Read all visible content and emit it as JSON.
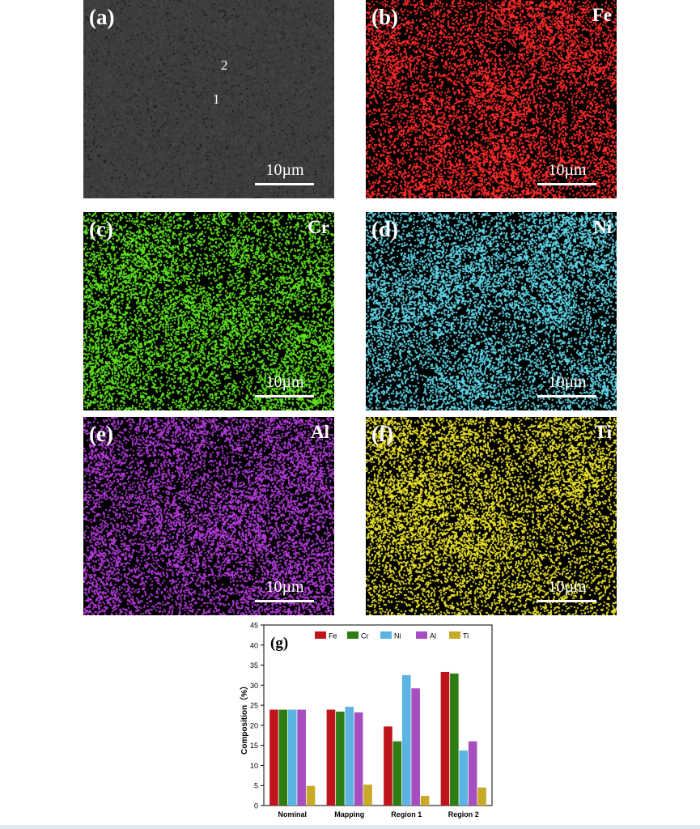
{
  "panels": [
    {
      "label": "(a)",
      "element": "",
      "kind": "sem",
      "scale": "10µm",
      "points": [
        "2",
        "1"
      ]
    },
    {
      "label": "(b)",
      "element": "Fe",
      "kind": "map",
      "color": "#ff2a2a",
      "scale": "10µm"
    },
    {
      "label": "(c)",
      "element": "Cr",
      "kind": "map",
      "color": "#5de01c",
      "scale": "10µm"
    },
    {
      "label": "(d)",
      "element": "Ni",
      "kind": "map",
      "color": "#5ed4e6",
      "scale": "10µm"
    },
    {
      "label": "(e)",
      "element": "Al",
      "kind": "map",
      "color": "#b23ad8",
      "scale": "10µm"
    },
    {
      "label": "(f)",
      "element": "Ti",
      "kind": "map",
      "color": "#e8e02a",
      "scale": "10µm"
    }
  ],
  "chart_data": {
    "type": "bar",
    "panel_label": "(g)",
    "categories": [
      "Nominal",
      "Mapping",
      "Region 1",
      "Region 2"
    ],
    "series": [
      {
        "name": "Fe",
        "color": "#c0141c",
        "values": [
          23.9,
          23.9,
          19.7,
          33.3
        ]
      },
      {
        "name": "Cr",
        "color": "#2e7d14",
        "values": [
          23.9,
          23.4,
          16.0,
          32.9
        ]
      },
      {
        "name": "Ni",
        "color": "#5ab3e0",
        "values": [
          23.9,
          24.6,
          32.5,
          13.7
        ]
      },
      {
        "name": "Al",
        "color": "#a64dc0",
        "values": [
          23.9,
          23.2,
          29.2,
          16.0
        ]
      },
      {
        "name": "Ti",
        "color": "#c8aa28",
        "values": [
          4.9,
          5.2,
          2.4,
          4.5
        ]
      }
    ],
    "title": "",
    "xlabel": "",
    "ylabel": "Composition（%）",
    "ylim": [
      0,
      45
    ],
    "yticks": [
      "0",
      "5",
      "10",
      "15",
      "20",
      "25",
      "30",
      "35",
      "40",
      "45"
    ],
    "legend": "top, horizontal",
    "grid": false
  }
}
